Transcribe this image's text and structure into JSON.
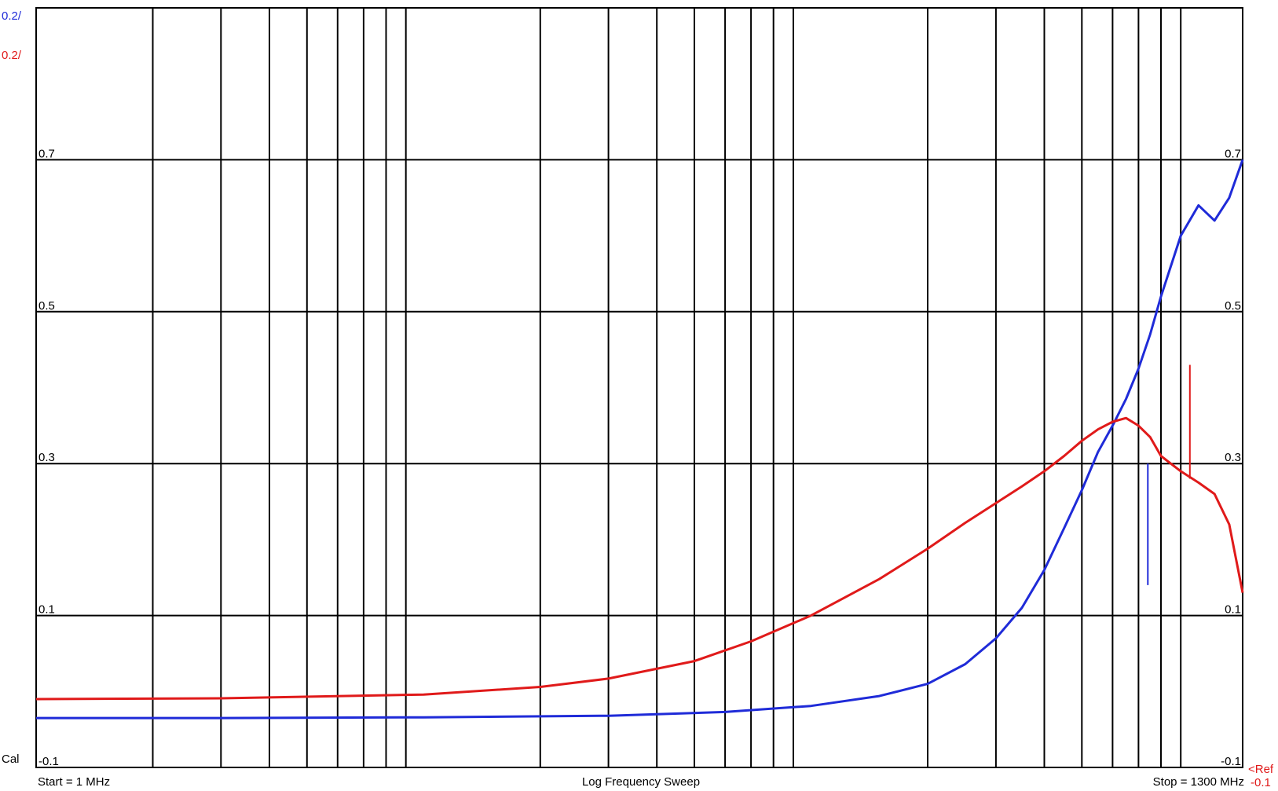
{
  "chart_data": {
    "type": "line",
    "title": "",
    "x_scale": "log",
    "x_range_mhz": [
      1,
      1300
    ],
    "ylim": [
      -0.1,
      0.9
    ],
    "y_tick_labels": [
      "0.7",
      "0.5",
      "0.3",
      "0.1",
      "-0.1"
    ],
    "grid": true,
    "scale_labels": {
      "blue": "0.2/",
      "red": "0.2/"
    },
    "corner_left": "Cal",
    "corner_right_top": "<Ref",
    "corner_right_bottom": "-0.1",
    "footer": {
      "start": "Start = 1 MHz",
      "center": "Log Frequency Sweep",
      "stop": "Stop = 1300 MHz"
    },
    "series": [
      {
        "color": "#1f2bd8",
        "x_mhz": [
          1,
          3,
          10,
          30,
          60,
          100,
          150,
          200,
          250,
          300,
          350,
          400,
          450,
          500,
          550,
          600,
          650,
          700,
          750,
          800,
          900,
          1000,
          1100,
          1200,
          1300
        ],
        "y": [
          -0.035,
          -0.035,
          -0.034,
          -0.032,
          -0.027,
          -0.019,
          -0.006,
          0.01,
          0.036,
          0.07,
          0.11,
          0.16,
          0.215,
          0.265,
          0.315,
          0.35,
          0.385,
          0.425,
          0.47,
          0.52,
          0.6,
          0.64,
          0.62,
          0.65,
          0.7
        ]
      },
      {
        "color": "#e01a1a",
        "x_mhz": [
          1,
          3,
          10,
          20,
          30,
          50,
          70,
          100,
          150,
          200,
          250,
          300,
          350,
          400,
          450,
          500,
          550,
          600,
          650,
          700,
          750,
          800,
          900,
          1000,
          1100,
          1200,
          1300
        ],
        "y": [
          -0.01,
          -0.009,
          -0.004,
          0.006,
          0.017,
          0.04,
          0.066,
          0.1,
          0.148,
          0.188,
          0.222,
          0.248,
          0.27,
          0.29,
          0.31,
          0.33,
          0.345,
          0.355,
          0.36,
          0.35,
          0.335,
          0.31,
          0.29,
          0.275,
          0.26,
          0.22,
          0.13
        ]
      }
    ],
    "spikes": [
      {
        "color": "#e01a1a",
        "x_mhz": 950,
        "y_top": 0.43,
        "y_bottom": 0.28
      },
      {
        "color": "#1f2bd8",
        "x_mhz": 740,
        "y_top": 0.3,
        "y_bottom": 0.14
      }
    ]
  }
}
